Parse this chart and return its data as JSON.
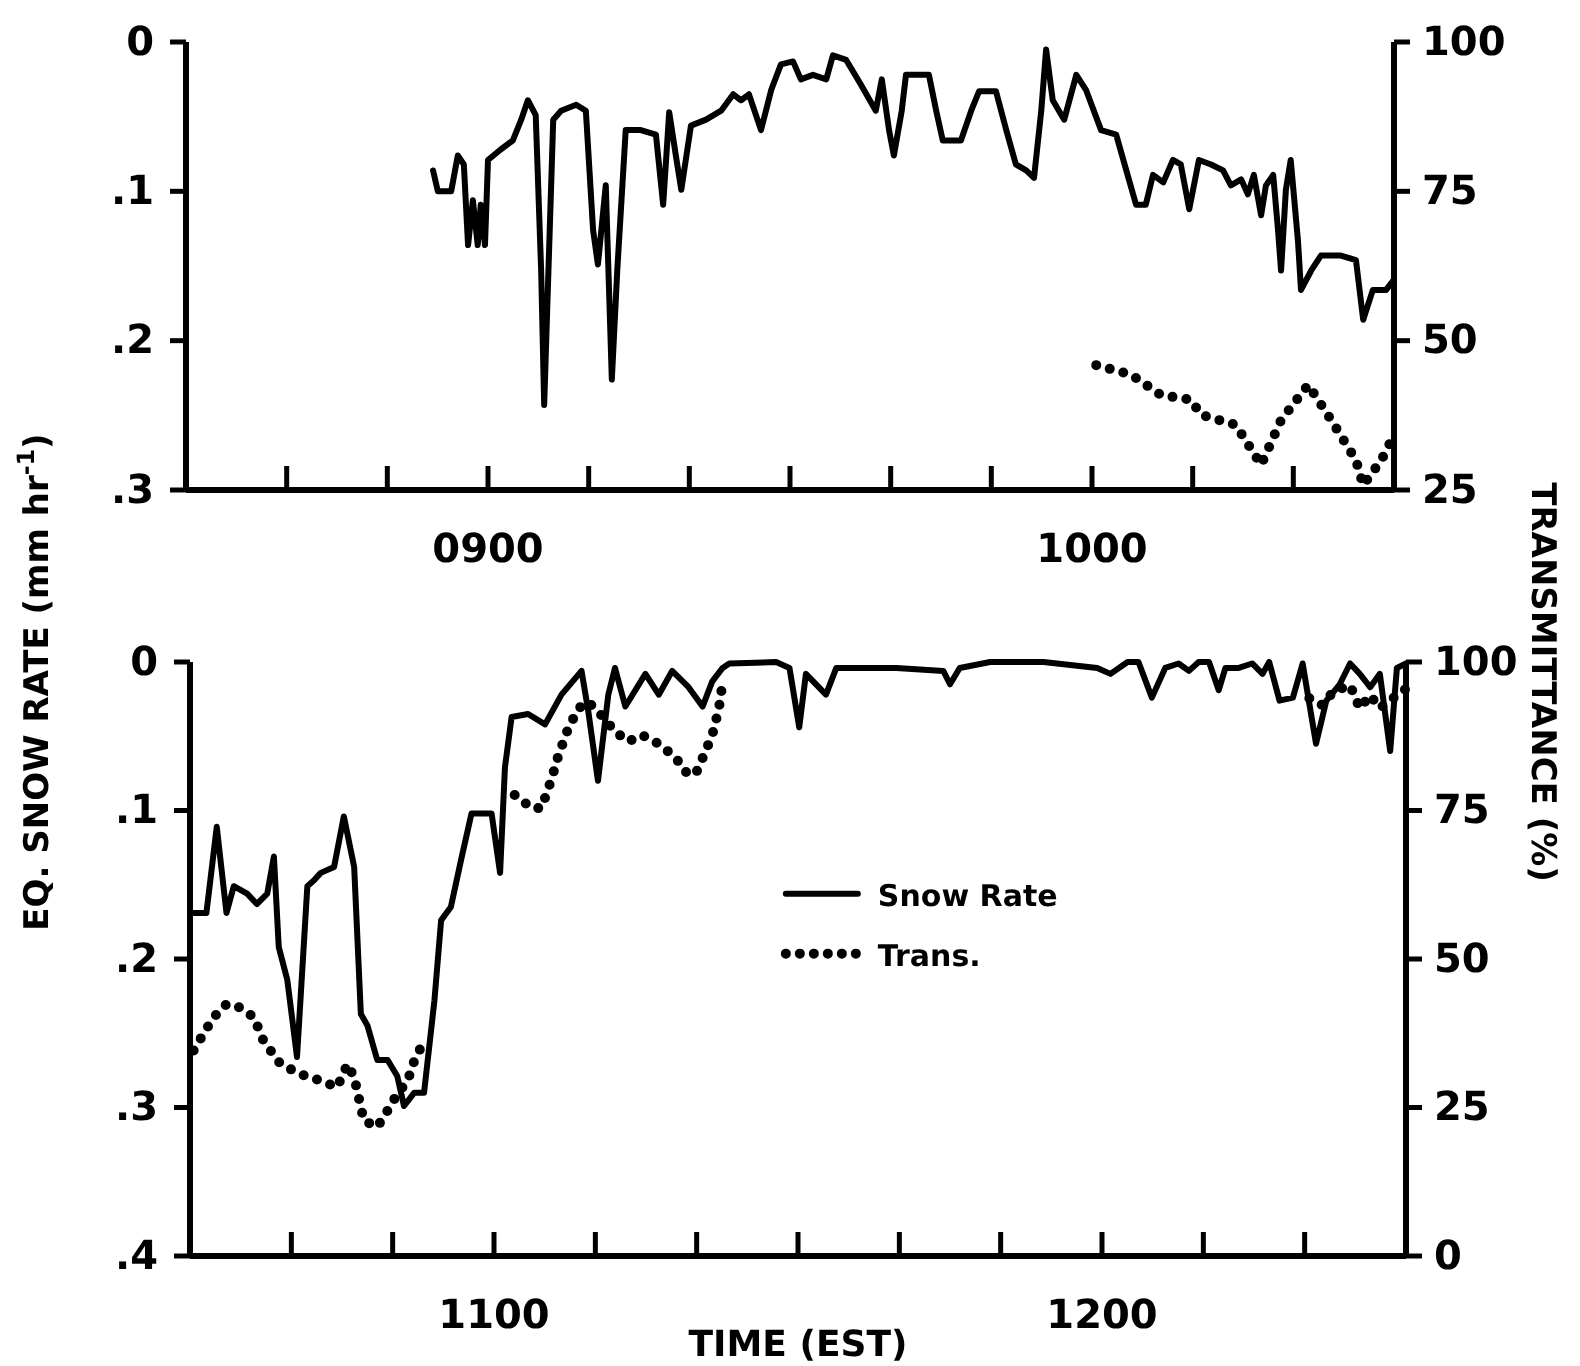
{
  "chart_data": [
    {
      "type": "line",
      "ylabel": "EQ. SNOW RATE (mm hr$^{-1}$)",
      "y2label": "TRANSMITTANCE (%)",
      "xlim": [
        850,
        1050
      ],
      "xticks": [
        {
          "value": 866.67,
          "label": null
        },
        {
          "value": 883.33,
          "label": null
        },
        {
          "value": 900,
          "label": "0900"
        },
        {
          "value": 916.67,
          "label": null
        },
        {
          "value": 933.33,
          "label": null
        },
        {
          "value": 950,
          "label": null
        },
        {
          "value": 966.67,
          "label": null
        },
        {
          "value": 983.33,
          "label": null
        },
        {
          "value": 1000,
          "label": "1000"
        },
        {
          "value": 1016.67,
          "label": null
        },
        {
          "value": 1033.33,
          "label": null
        }
      ],
      "ylim": [
        0.3,
        0
      ],
      "yticks": [
        0,
        {
          "value": 0.1,
          "label": ".1"
        },
        {
          "value": 0.2,
          "label": ".2"
        },
        {
          "value": 0.3,
          "label": ".3"
        }
      ],
      "y2lim": [
        25,
        100
      ],
      "y2ticks": [
        25,
        50,
        75,
        100
      ],
      "series": [
        {
          "type": "line",
          "color": "#000000",
          "line_style": "solid",
          "x": [
            890.9,
            891.7,
            893.9,
            895,
            896,
            896.7,
            897.5,
            898.3,
            898.8,
            899.5,
            900,
            902.1,
            904.1,
            905.5,
            906.6,
            907.9,
            908.8,
            909.3,
            910.8,
            912.1,
            914.6,
            916.2,
            917.4,
            918.2,
            919.5,
            920.5,
            921.4,
            922.8,
            925.3,
            927.8,
            929,
            930,
            931.1,
            932,
            933.6,
            936.1,
            938.6,
            940.6,
            941.9,
            943.2,
            945.2,
            946.9,
            948.5,
            950.5,
            951.8,
            953.8,
            956,
            957.1,
            959.3,
            961.8,
            964.2,
            965.2,
            966.4,
            967.2,
            968.5,
            969.2,
            973,
            974.2,
            975.3,
            978.3,
            980,
            981.3,
            984.1,
            985.8,
            987.4,
            989.1,
            990.4,
            991.6,
            992.4,
            993.5,
            995.4,
            997.4,
            999,
            1001.5,
            1004,
            1006.1,
            1007.3,
            1008.9,
            1010.1,
            1011.8,
            1013.4,
            1014.7,
            1016.1,
            1017.7,
            1019.7,
            1021.7,
            1023,
            1024.7,
            1025.8,
            1026.8,
            1028,
            1028.8,
            1030,
            1030.8,
            1031.3,
            1032.1,
            1032.9,
            1034.1,
            1034.6,
            1036.3,
            1037.9,
            1041.2,
            1043.7,
            1044.9,
            1046.5,
            1048.7,
            1050
          ],
          "values": [
            0.086,
            0.1,
            0.1,
            0.076,
            0.082,
            0.136,
            0.106,
            0.136,
            0.109,
            0.136,
            0.079,
            0.072,
            0.066,
            0.052,
            0.039,
            0.049,
            0.153,
            0.243,
            0.052,
            0.046,
            0.042,
            0.046,
            0.126,
            0.149,
            0.096,
            0.226,
            0.153,
            0.059,
            0.059,
            0.062,
            0.109,
            0.047,
            0.076,
            0.099,
            0.056,
            0.052,
            0.046,
            0.035,
            0.039,
            0.035,
            0.059,
            0.032,
            0.015,
            0.013,
            0.025,
            0.022,
            0.025,
            0.009,
            0.012,
            0.029,
            0.046,
            0.025,
            0.059,
            0.076,
            0.046,
            0.022,
            0.022,
            0.046,
            0.066,
            0.066,
            0.046,
            0.033,
            0.033,
            0.059,
            0.082,
            0.086,
            0.091,
            0.046,
            0.005,
            0.039,
            0.052,
            0.022,
            0.032,
            0.059,
            0.062,
            0.092,
            0.109,
            0.109,
            0.089,
            0.094,
            0.079,
            0.082,
            0.112,
            0.079,
            0.082,
            0.086,
            0.096,
            0.092,
            0.102,
            0.089,
            0.116,
            0.096,
            0.089,
            0.126,
            0.153,
            0.099,
            0.079,
            0.133,
            0.166,
            0.153,
            0.143,
            0.143,
            0.146,
            0.186,
            0.166,
            0.166,
            0.159
          ]
        },
        {
          "type": "line",
          "axis": "y2",
          "color": "#000000",
          "line_style": "dotted",
          "x": [
            1000.7,
            1006.5,
            1011.4,
            1016.4,
            1018,
            1023.8,
            1028,
            1031.3,
            1035.8,
            1039.6,
            1043.7,
            1044.9,
            1047.9,
            1050
          ],
          "values": [
            45.9,
            44.3,
            40.9,
            40.1,
            37.6,
            35.9,
            29.2,
            36.7,
            42.6,
            36.7,
            30.0,
            25.8,
            30.0,
            34.2
          ]
        }
      ]
    },
    {
      "type": "line",
      "xlabel": "TIME (EST)",
      "legend": "center",
      "xlim": [
        1050,
        1250
      ],
      "xticks": [
        {
          "value": 1066.67,
          "label": null
        },
        {
          "value": 1083.33,
          "label": null
        },
        {
          "value": 1100,
          "label": "1100"
        },
        {
          "value": 1116.67,
          "label": null
        },
        {
          "value": 1133.33,
          "label": null
        },
        {
          "value": 1150,
          "label": null
        },
        {
          "value": 1166.67,
          "label": null
        },
        {
          "value": 1183.33,
          "label": null
        },
        {
          "value": 1200,
          "label": "1200"
        },
        {
          "value": 1216.67,
          "label": null
        },
        {
          "value": 1233.33,
          "label": null
        }
      ],
      "ylim": [
        0.4,
        0
      ],
      "yticks": [
        0,
        {
          "value": 0.1,
          "label": ".1"
        },
        {
          "value": 0.2,
          "label": ".2"
        },
        {
          "value": 0.3,
          "label": ".3"
        },
        {
          "value": 0.4,
          "label": ".4"
        }
      ],
      "y2lim": [
        0,
        100
      ],
      "y2ticks": [
        0,
        25,
        50,
        75,
        100
      ],
      "series": [
        {
          "type": "line",
          "name": "Snow Rate",
          "color": "#000000",
          "line_style": "solid",
          "x": [
            1050,
            1052.7,
            1054.4,
            1056,
            1057.2,
            1059.4,
            1061,
            1062.7,
            1063.8,
            1064.6,
            1066,
            1067.6,
            1069.3,
            1070.4,
            1071.5,
            1073.7,
            1075.3,
            1077,
            1078.1,
            1079.2,
            1080.8,
            1082.5,
            1084.1,
            1085.2,
            1086.9,
            1088.5,
            1090.2,
            1091.3,
            1092.9,
            1094.6,
            1096.3,
            1099.6,
            1101,
            1101.8,
            1102.9,
            1105.6,
            1108.4,
            1111.1,
            1114.4,
            1115.5,
            1117.1,
            1118.8,
            1119.9,
            1121.6,
            1124.9,
            1127.1,
            1129.3,
            1132,
            1134.3,
            1135.9,
            1137.6,
            1138.7,
            1146.4,
            1148.6,
            1150.2,
            1151.3,
            1154.6,
            1156.3,
            1166.2,
            1173.9,
            1175,
            1176.6,
            1181.6,
            1190.4,
            1199.2,
            1201.4,
            1204.2,
            1206,
            1208.2,
            1210.4,
            1212.6,
            1214.3,
            1215.9,
            1217.6,
            1219.2,
            1220.3,
            1222.5,
            1224.7,
            1226.4,
            1227.5,
            1229.2,
            1231.4,
            1233,
            1235.2,
            1236.9,
            1239.1,
            1240.8,
            1242.4,
            1244.1,
            1245.7,
            1247.4,
            1248.5,
            1250
          ],
          "values": [
            0.169,
            0.169,
            0.111,
            0.169,
            0.151,
            0.156,
            0.163,
            0.156,
            0.131,
            0.192,
            0.214,
            0.266,
            0.151,
            0.147,
            0.142,
            0.138,
            0.104,
            0.138,
            0.237,
            0.245,
            0.268,
            0.268,
            0.279,
            0.299,
            0.29,
            0.29,
            0.228,
            0.174,
            0.165,
            0.133,
            0.102,
            0.102,
            0.142,
            0.071,
            0.037,
            0.035,
            0.042,
            0.022,
            0.006,
            0.033,
            0.08,
            0.022,
            0.004,
            0.03,
            0.008,
            0.022,
            0.006,
            0.017,
            0.03,
            0.013,
            0.004,
            0.001,
            0,
            0.004,
            0.044,
            0.008,
            0.022,
            0.004,
            0.004,
            0.006,
            0.015,
            0.004,
            0,
            0,
            0.004,
            0.008,
            0,
            0,
            0.024,
            0.004,
            0.001,
            0.006,
            0,
            0,
            0.019,
            0.004,
            0.004,
            0.001,
            0.008,
            0,
            0.026,
            0.024,
            0.001,
            0.055,
            0.026,
            0.015,
            0.001,
            0.008,
            0.017,
            0.008,
            0.06,
            0.004,
            0.001
          ]
        },
        {
          "type": "line",
          "name": "Trans.",
          "axis": "y2",
          "color": "#000000",
          "line_style": "dotted",
          "x": [
            1050.6,
            1052.2,
            1053.9,
            1056,
            1058.3,
            1060.5,
            1062.1,
            1064.9,
            1068.2,
            1071.5,
            1074.2,
            1075.9,
            1077,
            1078.6,
            1080.8,
            1082.5,
            1084.1,
            1085.8,
            1086.9,
            1088.5,
            1095,
            1103.4,
            1106.2,
            1107.8,
            1109.5,
            1110.6,
            1112.2,
            1113.9,
            1115.5,
            1117.7,
            1119.9,
            1122.1,
            1124.3,
            1126.5,
            1128.7,
            1130.4,
            1131.5,
            1133.1,
            1134.3,
            1135.9,
            1137,
            1137.6,
            1180,
            1234.1,
            1236.3,
            1238,
            1240.8,
            1242.4,
            1244.1,
            1245.7,
            1248.5,
            1250
          ],
          "values": [
            34.6,
            37.4,
            40.2,
            42.4,
            41.8,
            40.2,
            36.2,
            32.3,
            30.6,
            29.5,
            28.4,
            32.3,
            30.1,
            22.8,
            21.7,
            24.5,
            27.3,
            29.5,
            32.9,
            36.2,
            null,
            77.6,
            75.4,
            75.4,
            80.4,
            84.3,
            88.8,
            92.2,
            93.3,
            91.0,
            88.3,
            86.6,
            87.7,
            86.6,
            84.9,
            83.2,
            81.5,
            81.0,
            83.8,
            87.7,
            92.2,
            96.6,
            null,
            93.9,
            92.7,
            95.0,
            96.1,
            92.2,
            94.4,
            92.2,
            94.4,
            95.5
          ]
        }
      ]
    }
  ]
}
